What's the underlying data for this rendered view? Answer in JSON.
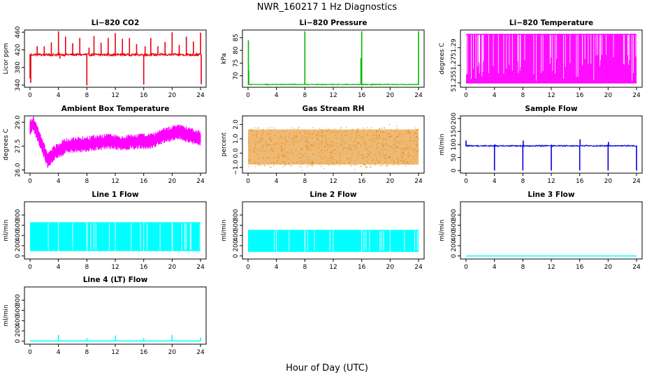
{
  "figure": {
    "title": "NWR_160217  1 Hz Diagnostics",
    "xlabel": "Hour of Day (UTC)"
  },
  "chart_data": [
    {
      "type": "line",
      "title": "Li−820 CO2",
      "ylabel": "Licor ppm",
      "color": "#e8000b",
      "xlim": [
        0,
        24
      ],
      "ylim": [
        335,
        465
      ],
      "xticks": [
        "0",
        "4",
        "8",
        "12",
        "16",
        "20",
        "24"
      ],
      "yticks": [
        {
          "value": 340,
          "label": "340"
        },
        {
          "value": 380,
          "label": "380"
        },
        {
          "value": 420,
          "label": "420"
        },
        {
          "value": 460,
          "label": "460"
        }
      ],
      "style": "noise",
      "base": 409,
      "amp": 3,
      "spikes": [
        [
          0,
          355
        ],
        [
          0.1,
          345
        ],
        [
          1.0,
          428
        ],
        [
          2.0,
          428
        ],
        [
          3.0,
          437
        ],
        [
          4.0,
          462
        ],
        [
          4.2,
          400
        ],
        [
          5.0,
          450
        ],
        [
          6.0,
          435
        ],
        [
          7.0,
          447
        ],
        [
          8.0,
          339
        ],
        [
          8.3,
          425
        ],
        [
          9.0,
          451
        ],
        [
          10.0,
          436
        ],
        [
          11.0,
          447
        ],
        [
          12.0,
          458
        ],
        [
          13.0,
          445
        ],
        [
          14.0,
          447
        ],
        [
          15.0,
          433
        ],
        [
          16.0,
          341
        ],
        [
          16.2,
          428
        ],
        [
          17.0,
          447
        ],
        [
          18.0,
          428
        ],
        [
          19.0,
          438
        ],
        [
          20.0,
          460
        ],
        [
          21.0,
          431
        ],
        [
          22.0,
          450
        ],
        [
          23.0,
          439
        ],
        [
          24.0,
          459
        ],
        [
          24.1,
          342
        ]
      ]
    },
    {
      "type": "line",
      "title": "Li−820 Pressure",
      "ylabel": "kPa",
      "color": "#00bb00",
      "xlim": [
        0,
        24
      ],
      "ylim": [
        65.5,
        88
      ],
      "xticks": [
        "0",
        "4",
        "8",
        "12",
        "16",
        "20",
        "24"
      ],
      "yticks": [
        {
          "value": 70,
          "label": "70"
        },
        {
          "value": 75,
          "label": "75"
        },
        {
          "value": 80,
          "label": "80"
        },
        {
          "value": 85,
          "label": "85"
        }
      ],
      "style": "noise",
      "base": 66.6,
      "amp": 0.15,
      "spikes": [
        [
          0.05,
          84
        ],
        [
          0.1,
          72
        ],
        [
          8.0,
          87.5
        ],
        [
          16.0,
          87.5
        ],
        [
          15.9,
          77
        ],
        [
          24.0,
          87.5
        ]
      ]
    },
    {
      "type": "line",
      "title": "Li−820 Temperature",
      "ylabel": "degrees C",
      "color": "#ff00ff",
      "xlim": [
        0,
        24
      ],
      "ylim": [
        51.245,
        51.31
      ],
      "xticks": [
        "0",
        "4",
        "8",
        "12",
        "16",
        "20",
        "24"
      ],
      "yticks": [
        {
          "value": 51.25,
          "label": "51.25"
        },
        {
          "value": 51.27,
          "label": "51.27"
        },
        {
          "value": 51.29,
          "label": "51.29"
        }
      ],
      "style": "toggle",
      "hi": 51.305,
      "lo": 51.25
    },
    {
      "type": "line",
      "title": "Ambient Box Temperature",
      "ylabel": "degrees C",
      "color": "#ff00ff",
      "xlim": [
        0,
        24
      ],
      "ylim": [
        25.8,
        29.4
      ],
      "xticks": [
        "0",
        "4",
        "8",
        "12",
        "16",
        "20",
        "24"
      ],
      "yticks": [
        {
          "value": 26.0,
          "label": "26.0"
        },
        {
          "value": 27.5,
          "label": "27.5"
        },
        {
          "value": 29.0,
          "label": "29.0"
        }
      ],
      "style": "band",
      "trend": [
        [
          0,
          28.7
        ],
        [
          0.5,
          28.9
        ],
        [
          1.5,
          27.8
        ],
        [
          2.5,
          26.6
        ],
        [
          3.5,
          27.1
        ],
        [
          5,
          27.5
        ],
        [
          7,
          27.6
        ],
        [
          9,
          27.7
        ],
        [
          11,
          27.8
        ],
        [
          13,
          27.7
        ],
        [
          15,
          27.8
        ],
        [
          17,
          27.8
        ],
        [
          19,
          28.2
        ],
        [
          21,
          28.4
        ],
        [
          23,
          28.1
        ],
        [
          24,
          28.0
        ]
      ],
      "amp": 0.5
    },
    {
      "type": "scatter",
      "title": "Gas Stream RH",
      "ylabel": "percent",
      "color": "#e08000",
      "xlim": [
        0,
        24
      ],
      "ylim": [
        -1.4,
        2.6
      ],
      "xticks": [
        "0",
        "4",
        "8",
        "12",
        "16",
        "20",
        "24"
      ],
      "yticks": [
        {
          "value": -1.0,
          "label": "−1.0"
        },
        {
          "value": 0.0,
          "label": "0.0"
        },
        {
          "value": 1.0,
          "label": "1.0"
        },
        {
          "value": 2.0,
          "label": "2.0"
        }
      ],
      "style": "dense",
      "lo": -1.0,
      "hi": 1.8
    },
    {
      "type": "line",
      "title": "Sample Flow",
      "ylabel": "ml/min",
      "color": "#0000dd",
      "xlim": [
        0,
        24
      ],
      "ylim": [
        -10,
        210
      ],
      "xticks": [
        "0",
        "4",
        "8",
        "12",
        "16",
        "20",
        "24"
      ],
      "yticks": [
        {
          "value": 0,
          "label": "0"
        },
        {
          "value": 50,
          "label": "50"
        },
        {
          "value": 100,
          "label": "100"
        },
        {
          "value": 150,
          "label": "150"
        },
        {
          "value": 200,
          "label": "200"
        }
      ],
      "style": "noise",
      "base": 95,
      "amp": 2,
      "spikes": [
        [
          0,
          115
        ],
        [
          4,
          0
        ],
        [
          4.05,
          100
        ],
        [
          8,
          0
        ],
        [
          8.05,
          115
        ],
        [
          12,
          0
        ],
        [
          12.05,
          100
        ],
        [
          16,
          0
        ],
        [
          16.05,
          120
        ],
        [
          20,
          0
        ],
        [
          20.05,
          110
        ],
        [
          24,
          0
        ]
      ]
    },
    {
      "type": "line",
      "title": "Line 1 Flow",
      "ylabel": "ml/min",
      "color": "#00ffff",
      "xlim": [
        0,
        24
      ],
      "ylim": [
        -60,
        1060
      ],
      "xticks": [
        "0",
        "4",
        "8",
        "12",
        "16",
        "20",
        "24"
      ],
      "yticks": [
        {
          "value": 0,
          "label": "0"
        },
        {
          "value": 200,
          "label": "200"
        },
        {
          "value": 400,
          "label": "400"
        },
        {
          "value": 600,
          "label": "600"
        },
        {
          "value": 800,
          "label": "800"
        }
      ],
      "style": "block",
      "hi": 660,
      "lo": 95,
      "gaps": [
        4,
        8,
        12,
        16,
        20
      ]
    },
    {
      "type": "line",
      "title": "Line 2 Flow",
      "ylabel": "ml/min",
      "color": "#00ffff",
      "xlim": [
        0,
        24
      ],
      "ylim": [
        -60,
        1060
      ],
      "xticks": [
        "0",
        "4",
        "8",
        "12",
        "16",
        "20",
        "24"
      ],
      "yticks": [
        {
          "value": 0,
          "label": "0"
        },
        {
          "value": 200,
          "label": "200"
        },
        {
          "value": 400,
          "label": "400"
        },
        {
          "value": 600,
          "label": "600"
        },
        {
          "value": 800,
          "label": "800"
        }
      ],
      "style": "block",
      "hi": 510,
      "lo": 80,
      "gaps": [
        4,
        8,
        12,
        16,
        20
      ]
    },
    {
      "type": "line",
      "title": "Line 3 Flow",
      "ylabel": "ml/min",
      "color": "#00ffff",
      "xlim": [
        0,
        24
      ],
      "ylim": [
        -60,
        1060
      ],
      "xticks": [
        "0",
        "4",
        "8",
        "12",
        "16",
        "20",
        "24"
      ],
      "yticks": [
        {
          "value": 0,
          "label": "0"
        },
        {
          "value": 200,
          "label": "200"
        },
        {
          "value": 400,
          "label": "400"
        },
        {
          "value": 600,
          "label": "600"
        },
        {
          "value": 800,
          "label": "800"
        }
      ],
      "style": "flat",
      "base": 0
    },
    {
      "type": "line",
      "title": "Line 4 (LT) Flow",
      "ylabel": "ml/min",
      "color": "#00ffff",
      "xlim": [
        0,
        24
      ],
      "ylim": [
        -60,
        1060
      ],
      "xticks": [
        "0",
        "4",
        "8",
        "12",
        "16",
        "20",
        "24"
      ],
      "yticks": [
        {
          "value": 0,
          "label": "0"
        },
        {
          "value": 200,
          "label": "200"
        },
        {
          "value": 400,
          "label": "400"
        },
        {
          "value": 600,
          "label": "600"
        },
        {
          "value": 800,
          "label": "800"
        }
      ],
      "style": "flat",
      "base": 3,
      "spikes": [
        [
          4,
          120
        ],
        [
          8,
          60
        ],
        [
          12,
          110
        ],
        [
          16,
          60
        ],
        [
          20,
          120
        ],
        [
          24,
          70
        ]
      ]
    }
  ]
}
